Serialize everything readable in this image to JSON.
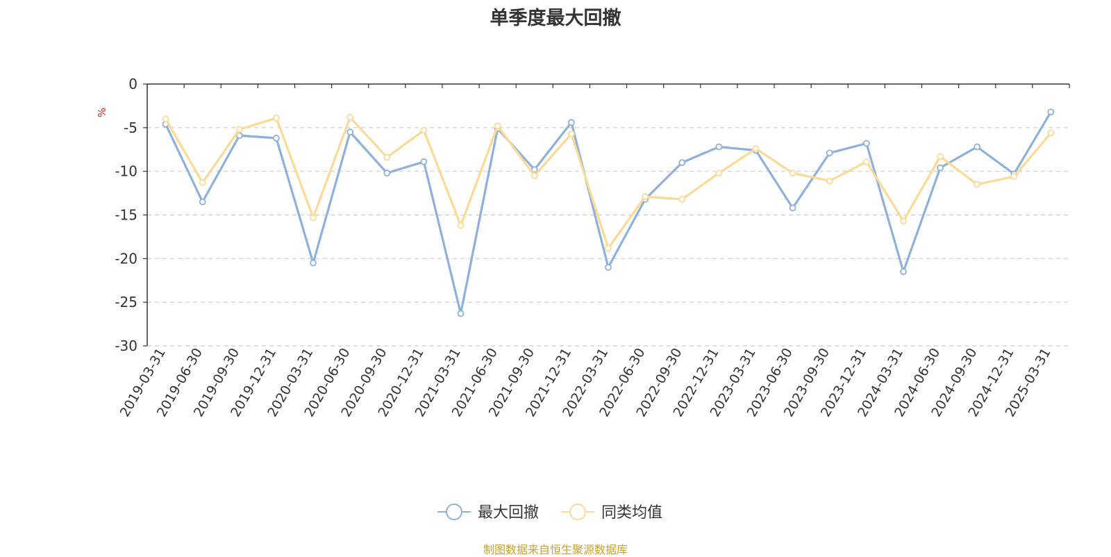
{
  "title": "单季度最大回撤",
  "source": "制图数据来自恒生聚源数据库",
  "chart_data": {
    "type": "line",
    "title": "单季度最大回撤",
    "ylabel": "%",
    "ylim": [
      -30,
      0
    ],
    "yticks": [
      0,
      -5,
      -10,
      -15,
      -20,
      -25,
      -30
    ],
    "grid": true,
    "legend_position": "bottom",
    "categories": [
      "2019-03-31",
      "2019-06-30",
      "2019-09-30",
      "2019-12-31",
      "2020-03-31",
      "2020-06-30",
      "2020-09-30",
      "2020-12-31",
      "2021-03-31",
      "2021-06-30",
      "2021-09-30",
      "2021-12-31",
      "2022-03-31",
      "2022-06-30",
      "2022-09-30",
      "2022-12-31",
      "2023-03-31",
      "2023-06-30",
      "2023-09-30",
      "2023-12-31",
      "2024-03-31",
      "2024-06-30",
      "2024-09-30",
      "2024-12-31",
      "2025-03-31"
    ],
    "series": [
      {
        "name": "最大回撤",
        "color": "#8eb0dc",
        "values": [
          -4.6,
          -13.5,
          -5.9,
          -6.2,
          -20.5,
          -5.5,
          -10.2,
          -8.9,
          -26.3,
          -5.1,
          -9.8,
          -4.4,
          -21.0,
          -13.2,
          -9.0,
          -7.2,
          -7.6,
          -14.2,
          -7.9,
          -6.8,
          -21.5,
          -9.6,
          -7.2,
          -10.3,
          -3.2
        ]
      },
      {
        "name": "同类均值",
        "color": "#fcd995",
        "values": [
          -4.0,
          -11.3,
          -5.2,
          -3.9,
          -15.3,
          -3.8,
          -8.4,
          -5.3,
          -16.2,
          -4.8,
          -10.5,
          -5.7,
          -18.8,
          -12.9,
          -13.2,
          -10.2,
          -7.4,
          -10.2,
          -11.1,
          -8.9,
          -15.7,
          -8.3,
          -11.5,
          -10.6,
          -5.6
        ]
      }
    ]
  }
}
